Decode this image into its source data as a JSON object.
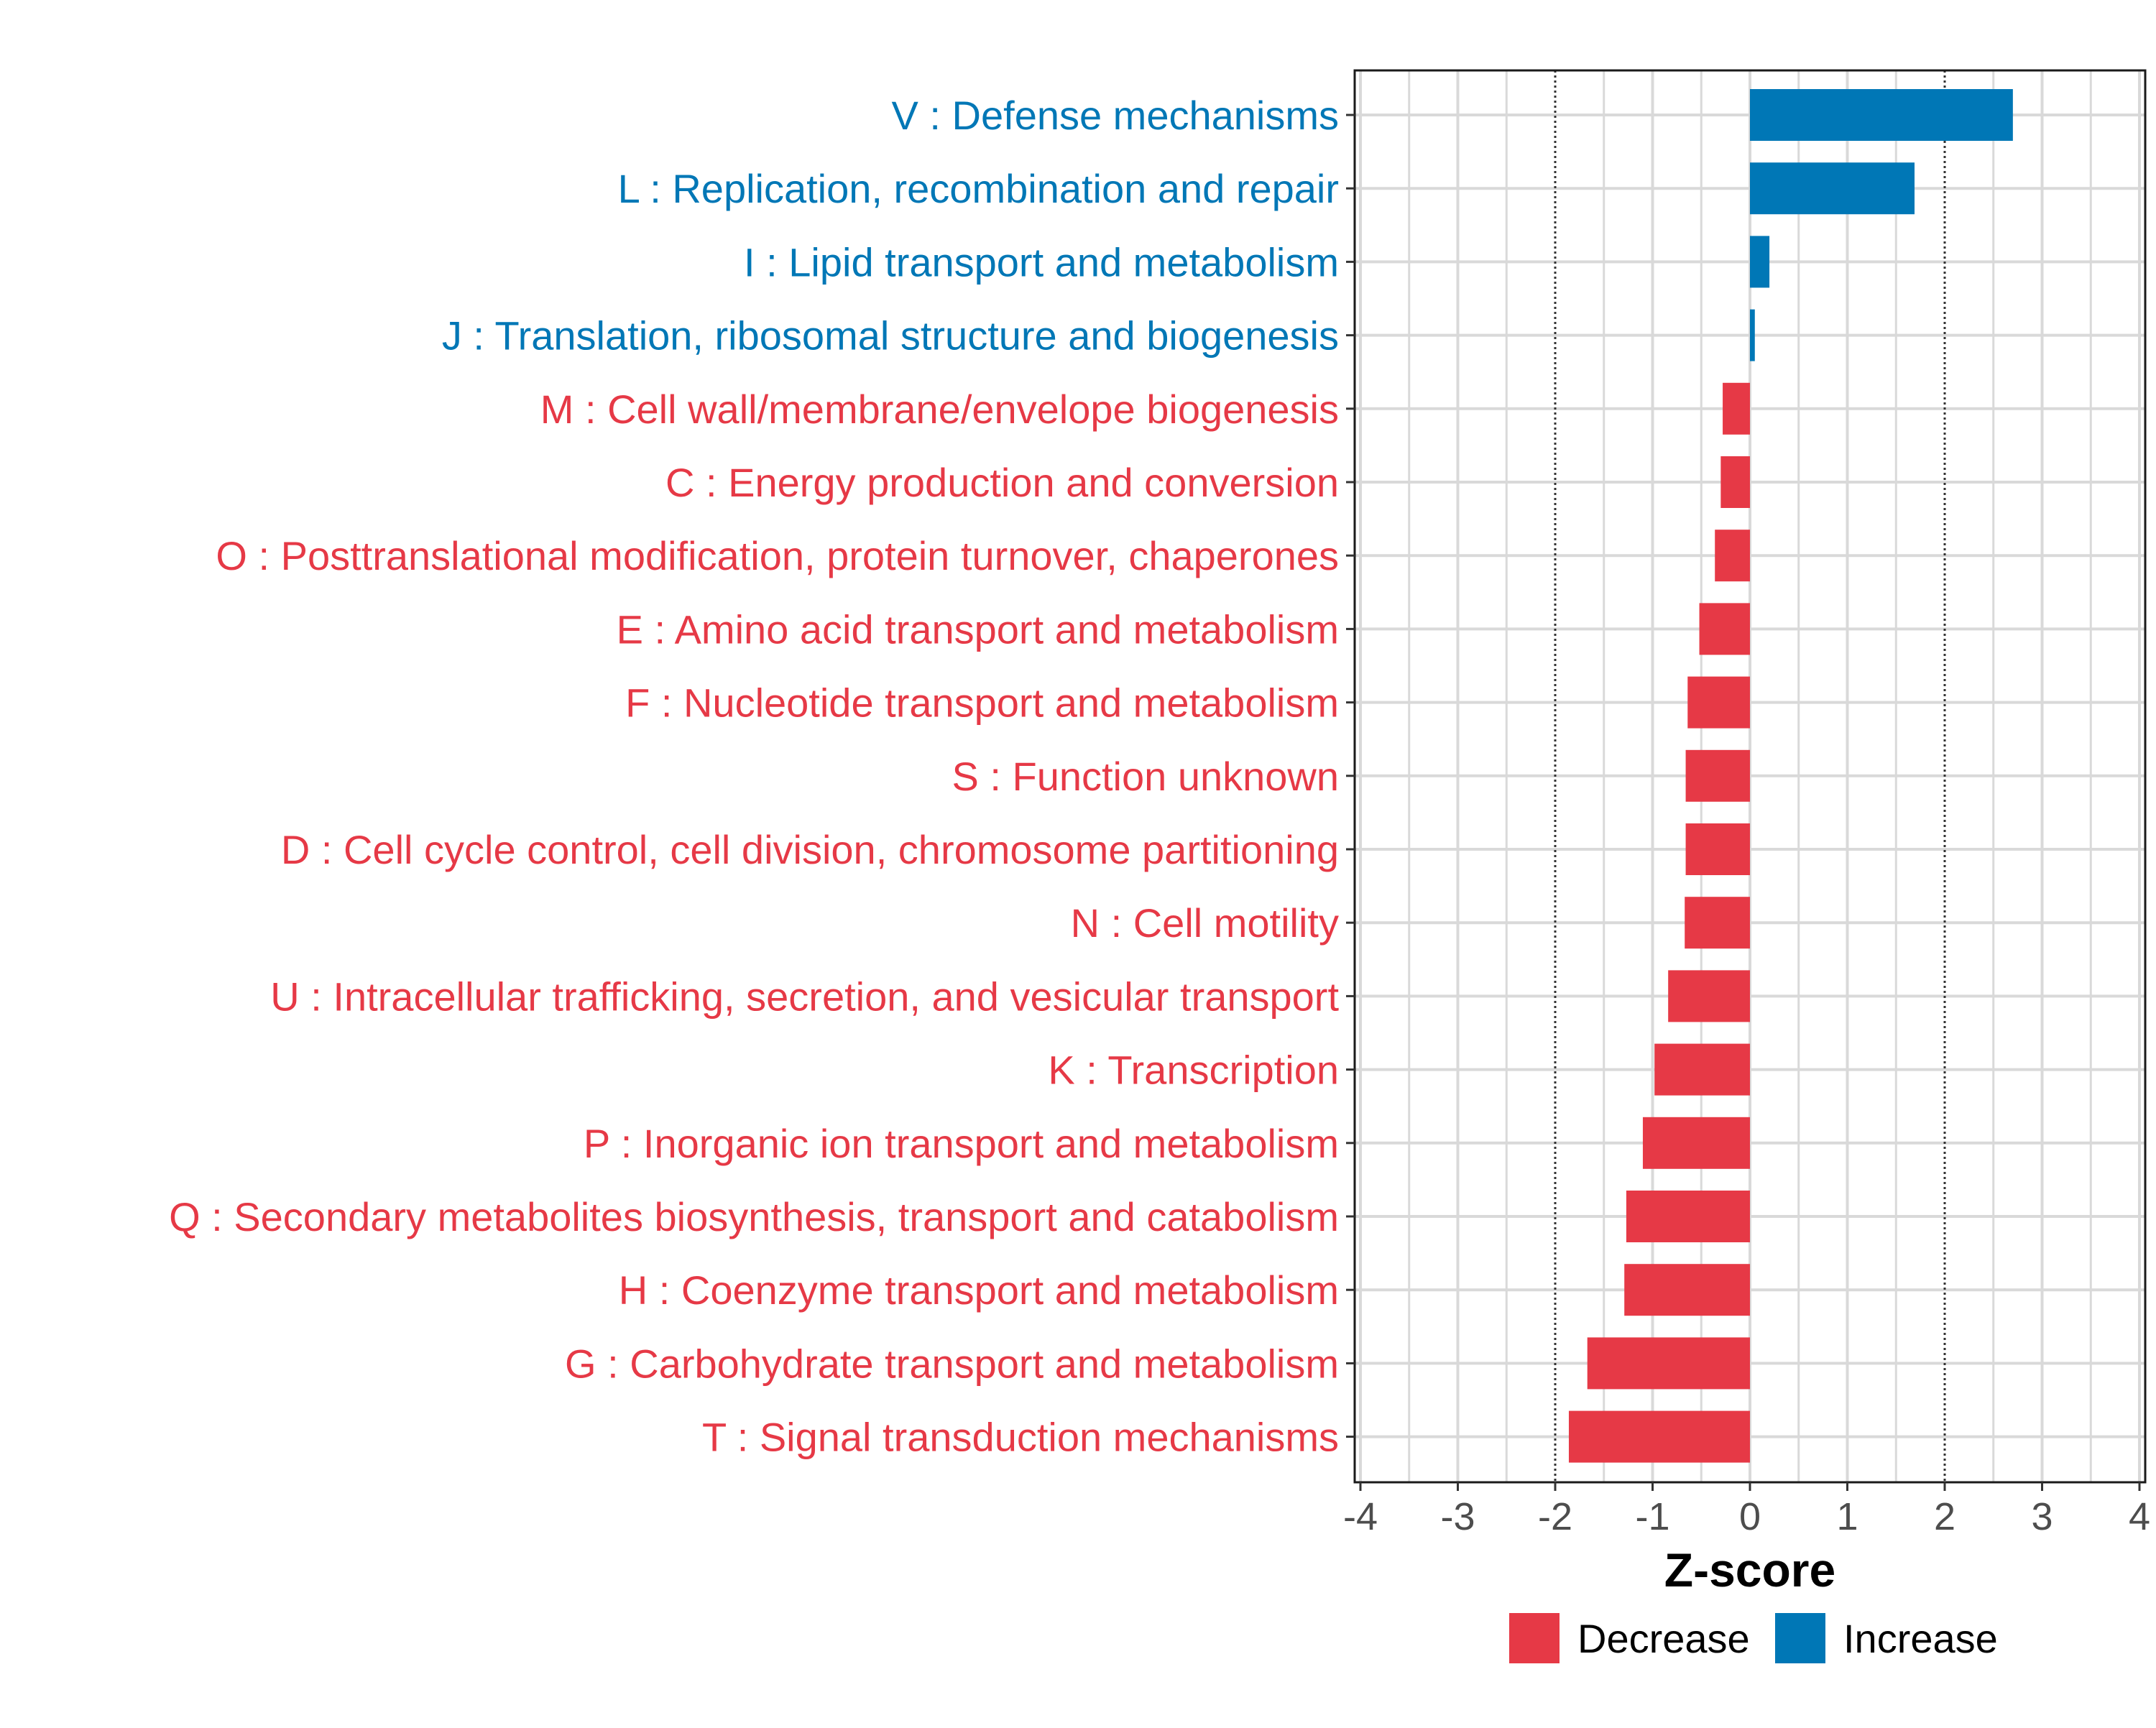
{
  "chart_data": {
    "type": "bar",
    "orientation": "horizontal",
    "xlabel": "Z-score",
    "ylabel": "",
    "xlim": [
      -4,
      4
    ],
    "x_ticks": [
      "-4",
      "-3",
      "-2",
      "-1",
      "0",
      "1",
      "2",
      "3",
      "4"
    ],
    "x_tick_values": [
      -4,
      -3,
      -2,
      -1,
      0,
      1,
      2,
      3,
      4
    ],
    "threshold_lines": [
      -2,
      2
    ],
    "grid": true,
    "legend_position": "bottom",
    "legend": [
      {
        "name": "Decrease",
        "color": "#E63946"
      },
      {
        "name": "Increase",
        "color": "#0077B6"
      }
    ],
    "categories": [
      "V : Defense mechanisms",
      "L : Replication, recombination and repair",
      "I : Lipid transport and metabolism",
      "J : Translation, ribosomal structure and biogenesis",
      "M : Cell wall/membrane/envelope biogenesis",
      "C : Energy production and conversion",
      "O : Posttranslational modification, protein turnover, chaperones",
      "E : Amino acid transport and metabolism",
      "F : Nucleotide transport and metabolism",
      "S : Function unknown",
      "D : Cell cycle control, cell division, chromosome partitioning",
      "N : Cell motility",
      "U : Intracellular trafficking, secretion, and vesicular transport",
      "K : Transcription",
      "P : Inorganic ion transport and metabolism",
      "Q : Secondary metabolites biosynthesis, transport and catabolism",
      "H : Coenzyme transport and metabolism",
      "G : Carbohydrate transport and metabolism",
      "T : Signal transduction mechanisms"
    ],
    "values": [
      2.7,
      1.69,
      0.2,
      0.05,
      -0.28,
      -0.3,
      -0.36,
      -0.52,
      -0.64,
      -0.66,
      -0.66,
      -0.67,
      -0.84,
      -0.98,
      -1.1,
      -1.27,
      -1.29,
      -1.67,
      -1.86
    ],
    "groups": [
      "Increase",
      "Increase",
      "Increase",
      "Increase",
      "Decrease",
      "Decrease",
      "Decrease",
      "Decrease",
      "Decrease",
      "Decrease",
      "Decrease",
      "Decrease",
      "Decrease",
      "Decrease",
      "Decrease",
      "Decrease",
      "Decrease",
      "Decrease",
      "Decrease"
    ]
  }
}
